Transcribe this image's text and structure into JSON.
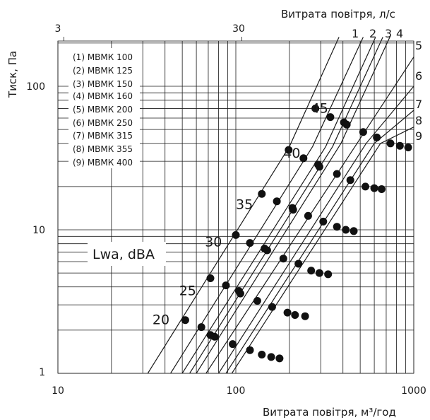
{
  "chart_data": {
    "type": "line",
    "xscale": "log",
    "yscale": "log",
    "x_unit": "м³/год",
    "xlim": [
      10,
      1000
    ],
    "ylim": [
      1,
      250
    ],
    "x_ticks": [
      "10",
      "100",
      "1000"
    ],
    "y_ticks": [
      "1",
      "10",
      "100"
    ],
    "x2_ticks": [
      "3",
      "30"
    ],
    "xlabel": "Витрата повітря, м³/год",
    "ylabel": "Тиск, Па",
    "x2label": "Витрата повітря, л/с",
    "grid": true,
    "legend_title": "Lwa, dBA",
    "legend": [
      "(1) МВМК 100",
      "(2) МВМК 125",
      "(3) МВМК 150",
      "(4) МВМК 160",
      "(5) МВМК 200",
      "(6) МВМК 250",
      "(7) МВМК 315",
      "(8) МВМК 355",
      "(9) МВМК 400"
    ],
    "series": [
      {
        "name": "1",
        "points": [
          [
            32,
            1
          ],
          [
            200,
            38
          ],
          [
            380,
            220
          ]
        ]
      },
      {
        "name": "2",
        "points": [
          [
            43,
            1
          ],
          [
            270,
            38
          ],
          [
            520,
            220
          ]
        ]
      },
      {
        "name": "3",
        "points": [
          [
            50,
            1
          ],
          [
            320,
            38
          ],
          [
            610,
            220
          ]
        ]
      },
      {
        "name": "4",
        "points": [
          [
            55,
            1
          ],
          [
            350,
            38
          ],
          [
            670,
            220
          ]
        ]
      },
      {
        "name": "5",
        "points": [
          [
            60,
            1
          ],
          [
            390,
            40
          ],
          [
            740,
            225
          ]
        ]
      },
      {
        "name": "6",
        "points": [
          [
            68,
            1
          ],
          [
            480,
            40
          ],
          [
            1000,
            160
          ]
        ]
      },
      {
        "name": "7",
        "points": [
          [
            80,
            1
          ],
          [
            540,
            40
          ],
          [
            1000,
            100
          ]
        ]
      },
      {
        "name": "8",
        "points": [
          [
            88,
            1
          ],
          [
            600,
            40
          ],
          [
            1000,
            68
          ]
        ]
      },
      {
        "name": "9",
        "points": [
          [
            95,
            1
          ],
          [
            650,
            40
          ],
          [
            1000,
            52
          ]
        ]
      }
    ],
    "noise_labels": [
      {
        "text": "20",
        "x": 34,
        "y": 2.35
      },
      {
        "text": "25",
        "x": 48,
        "y": 3.75
      },
      {
        "text": "30",
        "x": 67,
        "y": 8.2
      },
      {
        "text": "35",
        "x": 100,
        "y": 15
      },
      {
        "text": "40",
        "x": 185,
        "y": 34
      },
      {
        "text": "45",
        "x": 265,
        "y": 70
      }
    ],
    "markers": [
      {
        "level": 20,
        "points": [
          [
            52,
            2.35
          ],
          [
            64,
            2.1
          ],
          [
            72,
            1.85
          ],
          [
            76,
            1.8
          ],
          [
            96,
            1.6
          ],
          [
            120,
            1.45
          ],
          [
            140,
            1.35
          ],
          [
            158,
            1.3
          ],
          [
            176,
            1.27
          ]
        ]
      },
      {
        "level": 25,
        "points": [
          [
            72,
            4.6
          ],
          [
            88,
            4.1
          ],
          [
            104,
            3.75
          ],
          [
            106,
            3.6
          ],
          [
            132,
            3.2
          ],
          [
            160,
            2.9
          ],
          [
            195,
            2.65
          ],
          [
            215,
            2.55
          ],
          [
            245,
            2.5
          ]
        ]
      },
      {
        "level": 30,
        "points": [
          [
            100,
            9.2
          ],
          [
            120,
            8.1
          ],
          [
            145,
            7.4
          ],
          [
            150,
            7.2
          ],
          [
            185,
            6.3
          ],
          [
            225,
            5.8
          ],
          [
            265,
            5.2
          ],
          [
            295,
            5.0
          ],
          [
            330,
            4.9
          ]
        ]
      },
      {
        "level": 35,
        "points": [
          [
            140,
            17.8
          ],
          [
            170,
            15.8
          ],
          [
            208,
            14.2
          ],
          [
            210,
            13.8
          ],
          [
            255,
            12.5
          ],
          [
            310,
            11.4
          ],
          [
            370,
            10.5
          ],
          [
            415,
            10.0
          ],
          [
            460,
            9.8
          ]
        ]
      },
      {
        "level": 40,
        "points": [
          [
            198,
            36
          ],
          [
            240,
            31.5
          ],
          [
            290,
            28.5
          ],
          [
            295,
            27.5
          ],
          [
            370,
            24.5
          ],
          [
            440,
            22.2
          ],
          [
            535,
            20.0
          ],
          [
            600,
            19.5
          ],
          [
            660,
            19.2
          ]
        ]
      },
      {
        "level": 45,
        "points": [
          [
            280,
            70
          ],
          [
            340,
            61
          ],
          [
            405,
            56
          ],
          [
            420,
            54
          ],
          [
            520,
            48
          ],
          [
            620,
            44
          ],
          [
            740,
            40
          ],
          [
            835,
            38.5
          ],
          [
            930,
            37.5
          ]
        ]
      }
    ],
    "line_labels_top": [
      "1",
      "2",
      "3",
      "4"
    ],
    "line_labels_right": [
      "5",
      "6",
      "7",
      "8",
      "9"
    ]
  }
}
